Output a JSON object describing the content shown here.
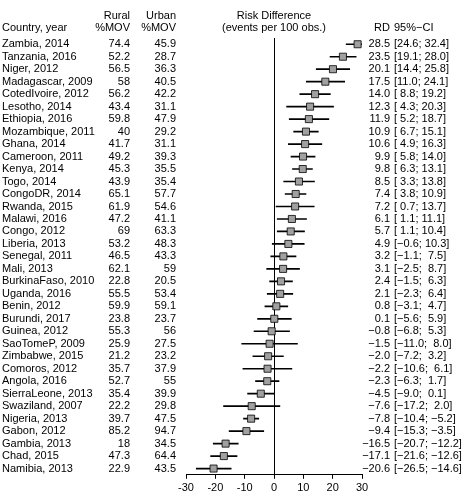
{
  "chart_data": {
    "type": "forest",
    "title": [
      "Risk Difference",
      "(events per 100 obs.)"
    ],
    "headers": {
      "category": "Country, year",
      "rural": [
        "Rural",
        "%MOV"
      ],
      "urban": [
        "Urban",
        "%MOV"
      ],
      "value": "RD",
      "ci": "95%−CI"
    },
    "categories": [
      "Zambia, 2014",
      "Tanzania, 2016",
      "Niger, 2012",
      "Madagascar, 2009",
      "CotedIvoire, 2012",
      "Lesotho, 2014",
      "Ethiopia, 2016",
      "Mozambique, 2011",
      "Ghana, 2014",
      "Cameroon, 2011",
      "Kenya, 2014",
      "Togo, 2014",
      "CongoDR, 2014",
      "Rwanda, 2015",
      "Malawi, 2016",
      "Congo, 2012",
      "Liberia, 2013",
      "Senegal, 2011",
      "Mali, 2013",
      "BurkinaFaso, 2010",
      "Uganda, 2016",
      "Benin, 2012",
      "Burundi, 2017",
      "Guinea, 2012",
      "SaoTomeP, 2009",
      "Zimbabwe, 2015",
      "Comoros, 2012",
      "Angola, 2016",
      "SierraLeone, 2013",
      "Swaziland, 2007",
      "Nigeria, 2013",
      "Gabon, 2012",
      "Gambia, 2013",
      "Chad, 2015",
      "Namibia, 2013"
    ],
    "rural": [
      74.4,
      52.2,
      56.5,
      58,
      56.2,
      43.4,
      59.8,
      40,
      41.7,
      49.2,
      45.3,
      43.9,
      65.1,
      61.9,
      47.2,
      69,
      53.2,
      46.5,
      62.1,
      22.8,
      55.5,
      59.9,
      23.8,
      55.3,
      25.9,
      21.2,
      35.7,
      52.7,
      35.4,
      22.2,
      39.7,
      85.2,
      18,
      47.3,
      22.9
    ],
    "urban": [
      45.9,
      28.7,
      36.3,
      40.5,
      42.2,
      31.1,
      47.9,
      29.2,
      31.1,
      39.3,
      35.5,
      35.4,
      57.7,
      54.6,
      41.1,
      63.3,
      48.3,
      43.3,
      59,
      20.5,
      53.4,
      59.1,
      23.7,
      56,
      27.5,
      23.2,
      37.9,
      55,
      39.9,
      29.8,
      47.5,
      94.7,
      34.5,
      64.4,
      43.5
    ],
    "values": [
      28.5,
      23.5,
      20.1,
      17.5,
      14.0,
      12.3,
      11.9,
      10.9,
      10.6,
      9.9,
      9.8,
      8.5,
      7.4,
      7.2,
      6.1,
      5.7,
      4.9,
      3.2,
      3.1,
      2.4,
      2.1,
      0.8,
      0.1,
      -0.8,
      -1.5,
      -2.0,
      -2.2,
      -2.3,
      -4.5,
      -7.6,
      -7.8,
      -9.4,
      -16.5,
      -17.1,
      -20.6
    ],
    "value_labels": [
      "28.5",
      "23.5",
      "20.1",
      "17.5",
      "14.0",
      "12.3",
      "11.9",
      "10.9",
      "10.6",
      "9.9",
      "9.8",
      "8.5",
      "7.4",
      "7.2",
      "6.1",
      "5.7",
      "4.9",
      "3.2",
      "3.1",
      "2.4",
      "2.1",
      "0.8",
      "0.1",
      "−0.8",
      "−1.5",
      "−2.0",
      "−2.2",
      "−2.3",
      "−4.5",
      "−7.6",
      "−7.8",
      "−9.4",
      "−16.5",
      "−17.1",
      "−20.6"
    ],
    "ci_low": [
      24.6,
      19.1,
      14.4,
      11.0,
      8.8,
      4.3,
      5.2,
      6.7,
      4.9,
      5.8,
      6.3,
      3.3,
      3.8,
      0.7,
      1.1,
      1.1,
      -0.6,
      -1.1,
      -2.5,
      -1.5,
      -2.3,
      -3.1,
      -5.6,
      -6.8,
      -11.0,
      -7.2,
      -10.6,
      -6.3,
      -9.0,
      -17.2,
      -10.4,
      -15.3,
      -20.7,
      -21.6,
      -26.5
    ],
    "ci_high": [
      32.4,
      28.0,
      25.8,
      24.1,
      19.2,
      20.3,
      18.7,
      15.1,
      16.3,
      14.0,
      13.1,
      13.8,
      10.9,
      13.7,
      11.1,
      10.4,
      10.3,
      7.5,
      8.7,
      6.3,
      6.4,
      4.7,
      5.9,
      5.3,
      8.0,
      3.2,
      6.1,
      1.7,
      0.1,
      2.0,
      -5.2,
      -3.5,
      -12.2,
      -12.6,
      -14.6
    ],
    "ci_labels": [
      "[24.6; 32.4]",
      "[19.1; 28.0]",
      "[14.4; 25.8]",
      "[11.0; 24.1]",
      "[ 8.8; 19.2]",
      "[ 4.3; 20.3]",
      "[ 5.2; 18.7]",
      "[ 6.7; 15.1]",
      "[ 4.9; 16.3]",
      "[ 5.8; 14.0]",
      "[ 6.3; 13.1]",
      "[ 3.3; 13.8]",
      "[ 3.8; 10.9]",
      "[ 0.7; 13.7]",
      "[ 1.1; 11.1]",
      "[ 1.1; 10.4]",
      "[−0.6; 10.3]",
      "[−1.1;  7.5]",
      "[−2.5;  8.7]",
      "[−1.5;  6.3]",
      "[−2.3;  6.4]",
      "[−3.1;  4.7]",
      "[−5.6;  5.9]",
      "[−6.8;  5.3]",
      "[−11.0;  8.0]",
      "[−7.2;  3.2]",
      "[−10.6;  6.1]",
      "[−6.3;  1.7]",
      "[−9.0;  0.1]",
      "[−17.2;  2.0]",
      "[−10.4; −5.2]",
      "[−15.3; −3.5]",
      "[−20.7; −12.2]",
      "[−21.6; −12.6]",
      "[−26.5; −14.6]"
    ],
    "reference_line": 0,
    "xlim": [
      -30,
      30
    ],
    "xticks": [
      -30,
      -20,
      -10,
      0,
      10,
      20,
      30
    ],
    "orientation": "horizontal",
    "grid": false,
    "color": "#a0a0a0",
    "marker": "square"
  }
}
